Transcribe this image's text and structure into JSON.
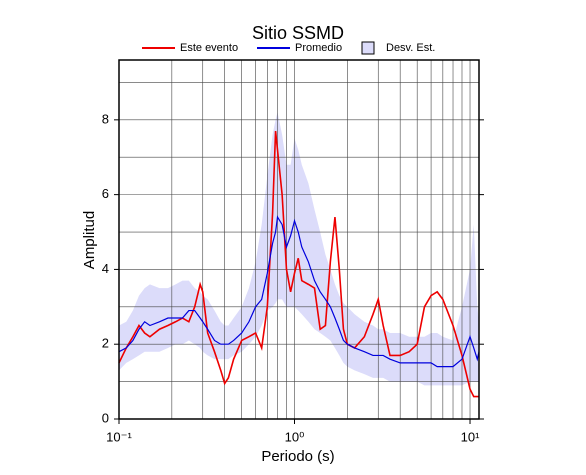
{
  "chart_data": {
    "type": "line",
    "title": "Sitio SSMD",
    "xlabel": "Periodo (s)",
    "ylabel": "Amplitud",
    "xscale": "log",
    "xlim": [
      0.1,
      11.25
    ],
    "ylim": [
      0,
      9.6
    ],
    "xticks": [
      {
        "value": 0.1,
        "label": "10⁻¹"
      },
      {
        "value": 1,
        "label": "10⁰"
      },
      {
        "value": 10,
        "label": "10¹"
      }
    ],
    "xminor_ticks": [
      0.2,
      0.3,
      0.4,
      0.5,
      0.6,
      0.7,
      0.8,
      0.9,
      2,
      3,
      4,
      5,
      6,
      7,
      8,
      9
    ],
    "yticks": [
      0,
      2,
      4,
      6,
      8
    ],
    "yminor_ticks": [
      1,
      3,
      5,
      7,
      9
    ],
    "grid": true,
    "x": [
      0.1,
      0.11,
      0.12,
      0.13,
      0.14,
      0.15,
      0.17,
      0.19,
      0.21,
      0.23,
      0.25,
      0.27,
      0.29,
      0.3,
      0.32,
      0.35,
      0.38,
      0.4,
      0.42,
      0.45,
      0.5,
      0.55,
      0.6,
      0.65,
      0.7,
      0.75,
      0.78,
      0.8,
      0.85,
      0.9,
      0.95,
      1.0,
      1.05,
      1.1,
      1.2,
      1.3,
      1.4,
      1.5,
      1.6,
      1.7,
      1.8,
      1.9,
      2.0,
      2.2,
      2.5,
      2.8,
      3.0,
      3.2,
      3.5,
      4.0,
      4.5,
      5.0,
      5.5,
      6.0,
      6.5,
      7.0,
      8.0,
      9.0,
      10,
      10.5,
      11,
      11.25
    ],
    "band": {
      "name": "Desv. Est.",
      "color": "#dcdcfa",
      "lower": [
        1.3,
        1.5,
        1.6,
        1.7,
        1.8,
        1.8,
        1.8,
        1.9,
        2.0,
        2.0,
        2.1,
        2.0,
        1.9,
        1.8,
        1.7,
        1.6,
        1.6,
        1.6,
        1.6,
        1.7,
        1.8,
        2.0,
        2.2,
        2.5,
        2.9,
        3.0,
        3.1,
        3.2,
        3.2,
        3.0,
        3.0,
        3.0,
        2.9,
        2.8,
        2.6,
        2.4,
        2.3,
        2.2,
        2.1,
        1.9,
        1.7,
        1.5,
        1.4,
        1.3,
        1.2,
        1.1,
        1.1,
        1.1,
        1.0,
        1.0,
        1.0,
        1.0,
        0.9,
        0.9,
        0.9,
        0.9,
        0.9,
        0.9,
        1.0,
        1.0,
        1.0,
        1.0
      ],
      "upper": [
        2.5,
        2.6,
        2.9,
        3.3,
        3.5,
        3.6,
        3.5,
        3.5,
        3.6,
        3.7,
        3.7,
        3.5,
        3.4,
        3.3,
        3.2,
        2.9,
        2.6,
        2.5,
        2.5,
        2.7,
        3.0,
        3.5,
        4.2,
        5.2,
        6.5,
        7.6,
        8.0,
        8.2,
        7.6,
        6.8,
        6.8,
        7.5,
        7.2,
        6.8,
        6.3,
        5.6,
        5.0,
        4.4,
        4.0,
        3.6,
        3.3,
        3.1,
        3.0,
        2.8,
        2.6,
        2.5,
        2.4,
        2.4,
        2.3,
        2.3,
        2.2,
        2.2,
        2.2,
        2.3,
        2.3,
        2.2,
        2.1,
        3.0,
        4.0,
        5.2,
        3.0,
        2.6
      ]
    },
    "series": [
      {
        "name": "Este evento",
        "color": "#ee0000",
        "values": [
          1.5,
          1.9,
          2.2,
          2.5,
          2.3,
          2.2,
          2.4,
          2.5,
          2.6,
          2.7,
          2.6,
          3.0,
          3.6,
          3.4,
          2.3,
          1.8,
          1.3,
          0.95,
          1.1,
          1.6,
          2.1,
          2.2,
          2.3,
          1.9,
          3.0,
          5.5,
          7.7,
          7.2,
          6.0,
          4.0,
          3.4,
          3.9,
          4.3,
          3.7,
          3.6,
          3.5,
          2.4,
          2.5,
          4.2,
          5.4,
          4.0,
          2.4,
          2.0,
          1.9,
          2.2,
          2.8,
          3.2,
          2.5,
          1.7,
          1.7,
          1.8,
          2.0,
          3.0,
          3.3,
          3.4,
          3.2,
          2.5,
          1.7,
          0.8,
          0.6,
          0.6,
          0.6
        ]
      },
      {
        "name": "Promedio",
        "color": "#0000dd",
        "values": [
          1.8,
          1.9,
          2.1,
          2.4,
          2.6,
          2.5,
          2.6,
          2.7,
          2.7,
          2.7,
          2.9,
          2.9,
          2.7,
          2.6,
          2.4,
          2.1,
          2.0,
          2.0,
          2.0,
          2.1,
          2.3,
          2.6,
          3.0,
          3.2,
          3.9,
          4.7,
          5.0,
          5.4,
          5.2,
          4.6,
          4.9,
          5.3,
          5.0,
          4.6,
          4.2,
          3.7,
          3.4,
          3.2,
          3.0,
          2.7,
          2.4,
          2.1,
          2.0,
          1.9,
          1.8,
          1.7,
          1.7,
          1.7,
          1.6,
          1.5,
          1.5,
          1.5,
          1.5,
          1.5,
          1.4,
          1.4,
          1.4,
          1.6,
          2.2,
          1.9,
          1.6,
          1.8
        ]
      }
    ]
  }
}
